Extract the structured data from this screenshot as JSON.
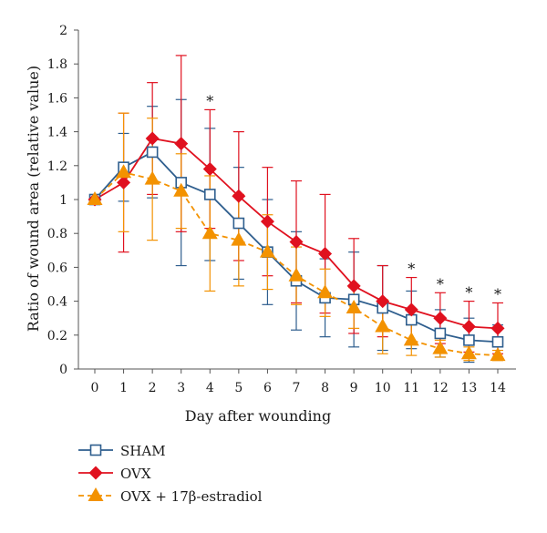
{
  "chart_data": {
    "type": "line",
    "xlabel": "Day after wounding",
    "ylabel": "Ratio of wound area (relative value)",
    "ylim": [
      0,
      2
    ],
    "yticks": [
      0,
      0.2,
      0.4,
      0.6,
      0.8,
      1,
      1.2,
      1.4,
      1.6,
      1.8,
      2
    ],
    "ytick_labels": [
      "0",
      "0.2",
      "0.4",
      "0.6",
      "0.8",
      "1",
      "1.2",
      "1.4",
      "1.6",
      "1.8",
      "2"
    ],
    "x": [
      0,
      1,
      2,
      3,
      4,
      5,
      6,
      7,
      8,
      9,
      10,
      11,
      12,
      13,
      14
    ],
    "xtick_labels": [
      "0",
      "1",
      "2",
      "3",
      "4",
      "5",
      "6",
      "7",
      "8",
      "9",
      "10",
      "11",
      "12",
      "13",
      "14"
    ],
    "grid": false,
    "legend_position": "bottom-left",
    "series": [
      {
        "name": "SHAM",
        "color": "#2e5e8e",
        "marker": "square",
        "line_style": "solid",
        "values": [
          1.0,
          1.19,
          1.28,
          1.1,
          1.03,
          0.86,
          0.69,
          0.52,
          0.42,
          0.41,
          0.36,
          0.29,
          0.21,
          0.17,
          0.16
        ],
        "errors": [
          0.0,
          0.2,
          0.27,
          0.49,
          0.39,
          0.33,
          0.31,
          0.29,
          0.23,
          0.28,
          0.25,
          0.17,
          0.14,
          0.13,
          0.1
        ]
      },
      {
        "name": "OVX",
        "color": "#e0111f",
        "marker": "diamond",
        "line_style": "solid",
        "values": [
          1.0,
          1.1,
          1.36,
          1.33,
          1.18,
          1.02,
          0.87,
          0.75,
          0.68,
          0.49,
          0.4,
          0.35,
          0.3,
          0.25,
          0.24
        ],
        "errors": [
          0.0,
          0.41,
          0.33,
          0.52,
          0.35,
          0.38,
          0.32,
          0.36,
          0.35,
          0.28,
          0.21,
          0.19,
          0.15,
          0.15,
          0.15
        ]
      },
      {
        "name": "OVX + 17β-estradiol",
        "color": "#f39200",
        "marker": "triangle",
        "line_style": "dashed",
        "values": [
          1.0,
          1.16,
          1.12,
          1.05,
          0.8,
          0.76,
          0.69,
          0.55,
          0.45,
          0.36,
          0.25,
          0.17,
          0.12,
          0.09,
          0.08
        ],
        "errors": [
          0.0,
          0.35,
          0.36,
          0.22,
          0.34,
          0.27,
          0.22,
          0.17,
          0.14,
          0.12,
          0.16,
          0.09,
          0.05,
          0.04,
          0.03
        ]
      }
    ],
    "significance_marker": "*",
    "significant_days": [
      4,
      11,
      12,
      13,
      14
    ]
  }
}
